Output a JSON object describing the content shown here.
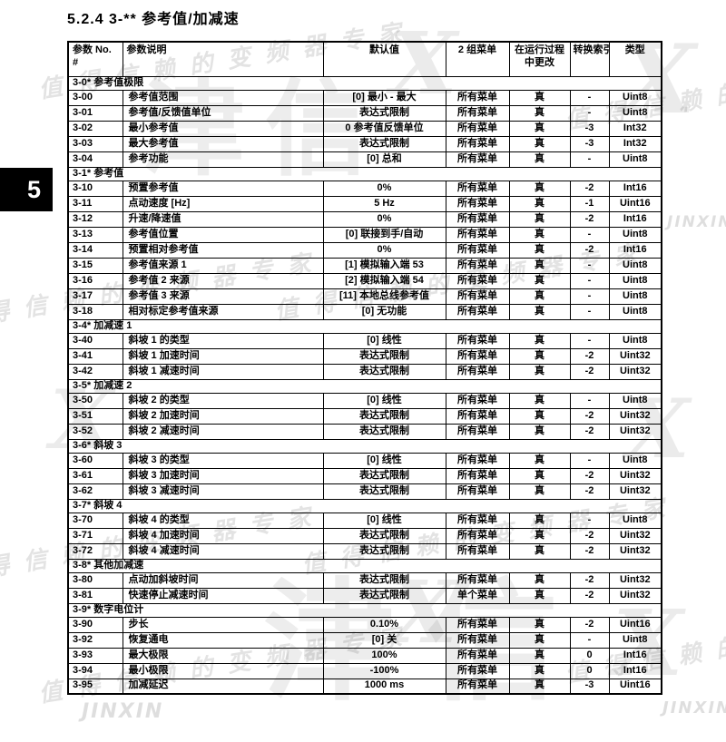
{
  "page": {
    "title": "5.2.4 3-** 参考值/加减速",
    "chapter_tab": "5"
  },
  "watermark": {
    "slogan": "值得信赖的变频器专家",
    "brand_cn": "津信",
    "brand_en": "JINXIN",
    "logo_mark": "X"
  },
  "table": {
    "header": {
      "no_line1": "参数 No.",
      "no_line2": "#",
      "desc": "参数说明",
      "default": "默认值",
      "menu": "2 组菜单",
      "runtime_line1": "在运行过程",
      "runtime_line2": "中更改",
      "index": "转换索引",
      "type": "类型"
    },
    "sections": [
      {
        "title": "3-0* 参考值极限",
        "rows": [
          [
            "3-00",
            "参考值范围",
            "[0] 最小 - 最大",
            "所有菜单",
            "真",
            "-",
            "Uint8"
          ],
          [
            "3-01",
            "参考值/反馈值单位",
            "表达式限制",
            "所有菜单",
            "真",
            "-",
            "Uint8"
          ],
          [
            "3-02",
            "最小参考值",
            "0 参考值反馈单位",
            "所有菜单",
            "真",
            "-3",
            "Int32"
          ],
          [
            "3-03",
            "最大参考值",
            "表达式限制",
            "所有菜单",
            "真",
            "-3",
            "Int32"
          ],
          [
            "3-04",
            "参考功能",
            "[0] 总和",
            "所有菜单",
            "真",
            "-",
            "Uint8"
          ]
        ]
      },
      {
        "title": "3-1* 参考值",
        "rows": [
          [
            "3-10",
            "预置参考值",
            "0%",
            "所有菜单",
            "真",
            "-2",
            "Int16"
          ],
          [
            "3-11",
            "点动速度 [Hz]",
            "5 Hz",
            "所有菜单",
            "真",
            "-1",
            "Uint16"
          ],
          [
            "3-12",
            "升速/降速值",
            "0%",
            "所有菜单",
            "真",
            "-2",
            "Int16"
          ],
          [
            "3-13",
            "参考值位置",
            "[0] 联接到手/自动",
            "所有菜单",
            "真",
            "-",
            "Uint8"
          ],
          [
            "3-14",
            "预置相对参考值",
            "0%",
            "所有菜单",
            "真",
            "-2",
            "Int16"
          ],
          [
            "3-15",
            "参考值来源 1",
            "[1] 模拟输入端 53",
            "所有菜单",
            "真",
            "-",
            "Uint8"
          ],
          [
            "3-16",
            "参考值 2 来源",
            "[2] 模拟输入端 54",
            "所有菜单",
            "真",
            "-",
            "Uint8"
          ],
          [
            "3-17",
            "参考值 3 来源",
            "[11] 本地总线参考值",
            "所有菜单",
            "真",
            "-",
            "Uint8"
          ],
          [
            "3-18",
            "相对标定参考值来源",
            "[0] 无功能",
            "所有菜单",
            "真",
            "-",
            "Uint8"
          ]
        ]
      },
      {
        "title": "3-4* 加减速 1",
        "rows": [
          [
            "3-40",
            "斜坡 1 的类型",
            "[0] 线性",
            "所有菜单",
            "真",
            "-",
            "Uint8"
          ],
          [
            "3-41",
            "斜坡 1 加速时间",
            "表达式限制",
            "所有菜单",
            "真",
            "-2",
            "Uint32"
          ],
          [
            "3-42",
            "斜坡 1 减速时间",
            "表达式限制",
            "所有菜单",
            "真",
            "-2",
            "Uint32"
          ]
        ]
      },
      {
        "title": "3-5* 加减速 2",
        "rows": [
          [
            "3-50",
            "斜坡 2 的类型",
            "[0] 线性",
            "所有菜单",
            "真",
            "-",
            "Uint8"
          ],
          [
            "3-51",
            "斜坡 2 加速时间",
            "表达式限制",
            "所有菜单",
            "真",
            "-2",
            "Uint32"
          ],
          [
            "3-52",
            "斜坡 2 减速时间",
            "表达式限制",
            "所有菜单",
            "真",
            "-2",
            "Uint32"
          ]
        ]
      },
      {
        "title": "3-6* 斜坡 3",
        "rows": [
          [
            "3-60",
            "斜坡 3 的类型",
            "[0] 线性",
            "所有菜单",
            "真",
            "-",
            "Uint8"
          ],
          [
            "3-61",
            "斜坡 3 加速时间",
            "表达式限制",
            "所有菜单",
            "真",
            "-2",
            "Uint32"
          ],
          [
            "3-62",
            "斜坡 3 减速时间",
            "表达式限制",
            "所有菜单",
            "真",
            "-2",
            "Uint32"
          ]
        ]
      },
      {
        "title": "3-7* 斜坡 4",
        "rows": [
          [
            "3-70",
            "斜坡 4 的类型",
            "[0] 线性",
            "所有菜单",
            "真",
            "-",
            "Uint8"
          ],
          [
            "3-71",
            "斜坡 4 加速时间",
            "表达式限制",
            "所有菜单",
            "真",
            "-2",
            "Uint32"
          ],
          [
            "3-72",
            "斜坡 4 减速时间",
            "表达式限制",
            "所有菜单",
            "真",
            "-2",
            "Uint32"
          ]
        ]
      },
      {
        "title": "3-8* 其他加减速",
        "rows": [
          [
            "3-80",
            "点动加斜坡时间",
            "表达式限制",
            "所有菜单",
            "真",
            "-2",
            "Uint32"
          ],
          [
            "3-81",
            "快速停止减速时间",
            "表达式限制",
            "单个菜单",
            "真",
            "-2",
            "Uint32"
          ]
        ]
      },
      {
        "title": "3-9* 数字电位计",
        "rows": [
          [
            "3-90",
            "步长",
            "0.10%",
            "所有菜单",
            "真",
            "-2",
            "Uint16"
          ],
          [
            "3-92",
            "恢复通电",
            "[0] 关",
            "所有菜单",
            "真",
            "-",
            "Uint8"
          ],
          [
            "3-93",
            "最大极限",
            "100%",
            "所有菜单",
            "真",
            "0",
            "Int16"
          ],
          [
            "3-94",
            "最小极限",
            "-100%",
            "所有菜单",
            "真",
            "0",
            "Int16"
          ],
          [
            "3-95",
            "加减延迟",
            "1000 ms",
            "所有菜单",
            "真",
            "-3",
            "Uint16"
          ]
        ]
      }
    ]
  }
}
